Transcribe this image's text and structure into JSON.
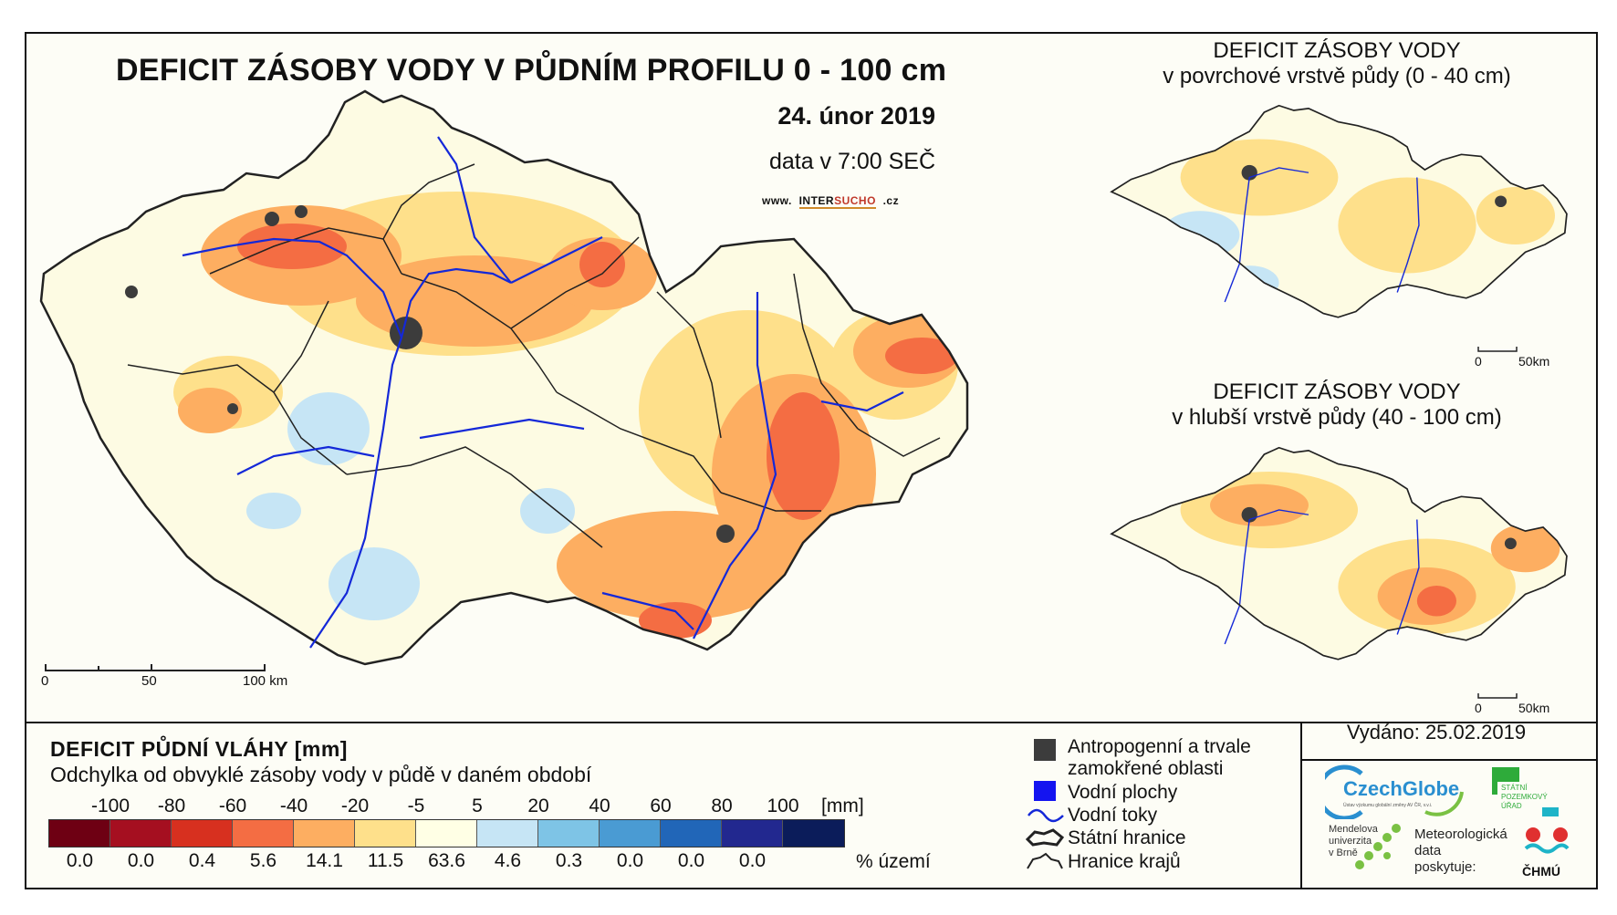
{
  "main": {
    "title": "DEFICIT ZÁSOBY VODY V PŮDNÍM PROFILU 0 - 100 cm",
    "date": "24. únor 2019",
    "time": "data v 7:00 SEČ",
    "website_prefix": "www.",
    "website_inter": "INTER",
    "website_sucho": "SUCHO",
    "website_suffix": ".cz",
    "scale": {
      "s0": "0",
      "s50": "50",
      "s100": "100 km"
    }
  },
  "inset_top": {
    "title": "DEFICIT ZÁSOBY VODY",
    "subtitle": "v povrchové vrstvě půdy (0 - 40 cm)",
    "scale": {
      "s0": "0",
      "s50": "50km"
    }
  },
  "inset_bottom": {
    "title": "DEFICIT ZÁSOBY VODY",
    "subtitle": "v hlubší vrstvě půdy (40 - 100 cm)",
    "scale": {
      "s0": "0",
      "s50": "50km"
    }
  },
  "legend": {
    "title": "DEFICIT PŮDNÍ VLÁHY [mm]",
    "subtitle": "Odchylka od obvyklé zásoby vody v půdě v daném období",
    "ticks": [
      "-100",
      "-80",
      "-60",
      "-40",
      "-20",
      "-5",
      "5",
      "20",
      "40",
      "60",
      "80",
      "100"
    ],
    "unit": "[mm]",
    "colors": [
      "#6e0013",
      "#a50f20",
      "#d7301f",
      "#f46d43",
      "#fdae61",
      "#fee08b",
      "#ffffe5",
      "#c6e5f5",
      "#7ec4e6",
      "#4a9bd3",
      "#2166b8",
      "#22288f",
      "#0b1c5a"
    ],
    "percentages": [
      "0.0",
      "0.0",
      "0.4",
      "5.6",
      "14.1",
      "11.5",
      "63.6",
      "4.6",
      "0.3",
      "0.0",
      "0.0",
      "0.0"
    ],
    "percent_label": "% území"
  },
  "map_legend": {
    "anthropogenic_1": "Antropogenní a trvale",
    "anthropogenic_2": "zamokřené oblasti",
    "water_bodies": "Vodní plochy",
    "rivers": "Vodní toky",
    "state_border": "Státní hranice",
    "region_border": "Hranice krajů"
  },
  "issued": "Vydáno: 25.02.2019",
  "logos": {
    "czechglobe": "CzechGlobe",
    "czechglobe_sub": "Ústav výzkumu globální změny AV ČR, v.v.i.",
    "spu_1": "STÁTNÍ",
    "spu_2": "POZEMKOVÝ",
    "spu_3": "ÚŘAD",
    "mendelu_1": "Mendelova",
    "mendelu_2": "univerzita",
    "mendelu_3": "v Brně",
    "meteo_1": "Meteorologická",
    "meteo_2": "data",
    "meteo_3": "poskytuje:",
    "chmu": "ČHMÚ"
  }
}
